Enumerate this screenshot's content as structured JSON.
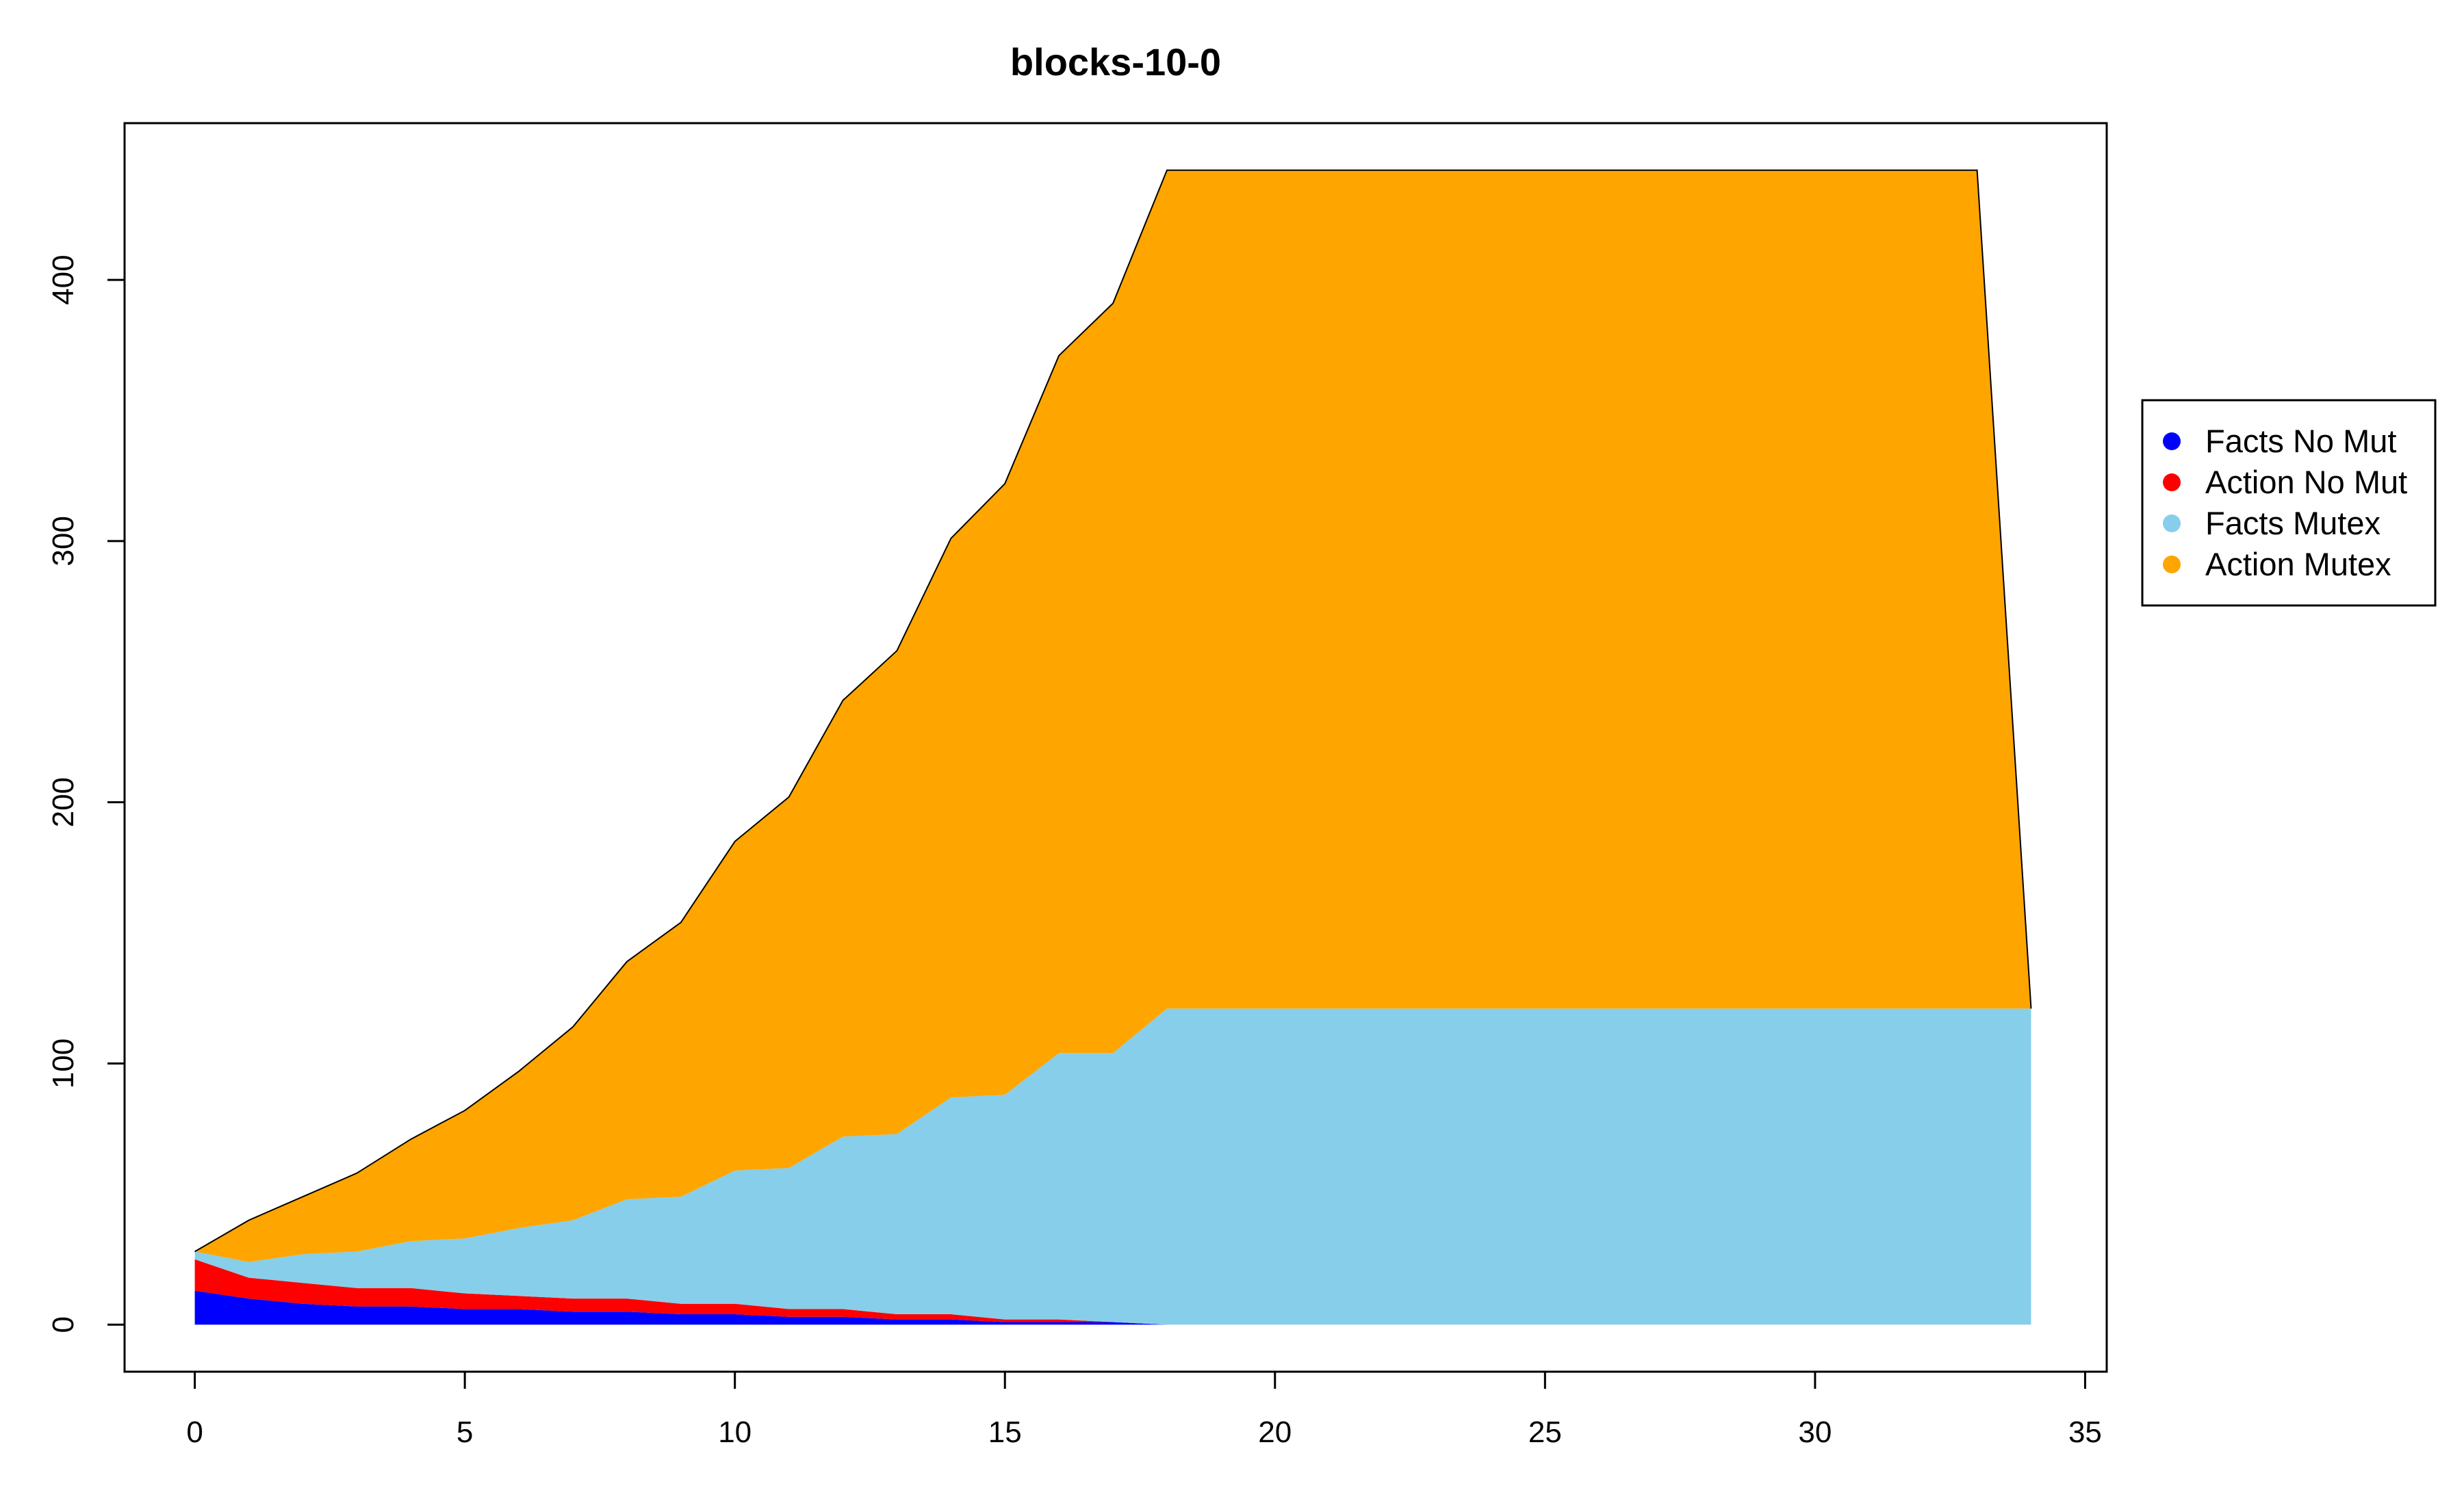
{
  "chart_data": {
    "type": "area",
    "stacked": true,
    "title": "blocks-10-0",
    "xlabel": "",
    "ylabel": "",
    "xlim": [
      -1.3,
      35.4
    ],
    "ylim": [
      -18,
      460
    ],
    "x_ticks": [
      0,
      5,
      10,
      15,
      20,
      25,
      30,
      35
    ],
    "y_ticks": [
      0,
      100,
      200,
      300,
      400
    ],
    "grid": false,
    "legend_position": "right",
    "x": [
      0,
      1,
      2,
      3,
      4,
      5,
      6,
      7,
      8,
      9,
      10,
      11,
      12,
      13,
      14,
      15,
      16,
      17,
      18,
      19,
      20,
      21,
      22,
      23,
      24,
      25,
      26,
      27,
      28,
      29,
      30,
      31,
      32,
      33,
      34
    ],
    "series": [
      {
        "name": "Facts No Mut",
        "color": "#0000ff",
        "values": [
          13,
          10,
          8,
          7,
          7,
          6,
          6,
          5,
          5,
          4,
          4,
          3,
          3,
          2,
          2,
          1,
          1,
          1,
          0,
          0,
          0,
          0,
          0,
          0,
          0,
          0,
          0,
          0,
          0,
          0,
          0,
          0,
          0,
          0,
          0
        ]
      },
      {
        "name": "Action No Mut",
        "color": "#ff0000",
        "values": [
          12,
          8,
          8,
          7,
          7,
          6,
          5,
          5,
          5,
          4,
          4,
          3,
          3,
          2,
          2,
          1,
          1,
          0,
          0,
          0,
          0,
          0,
          0,
          0,
          0,
          0,
          0,
          0,
          0,
          0,
          0,
          0,
          0,
          0,
          0
        ]
      },
      {
        "name": "Facts Mutex",
        "color": "#87ceeb",
        "values": [
          3,
          6,
          11,
          14,
          18,
          21,
          26,
          30,
          38,
          41,
          51,
          54,
          66,
          69,
          83,
          86,
          102,
          103,
          121,
          121,
          121,
          121,
          121,
          121,
          121,
          121,
          121,
          121,
          121,
          121,
          121,
          121,
          121,
          121,
          121
        ]
      },
      {
        "name": "Action Mutex",
        "color": "#ffa500",
        "values": [
          0,
          16,
          22,
          30,
          39,
          49,
          60,
          74,
          91,
          105,
          126,
          142,
          167,
          185,
          214,
          234,
          267,
          287,
          321,
          321,
          321,
          321,
          321,
          321,
          321,
          321,
          321,
          321,
          321,
          321,
          321,
          321,
          321,
          321,
          0
        ]
      }
    ]
  }
}
